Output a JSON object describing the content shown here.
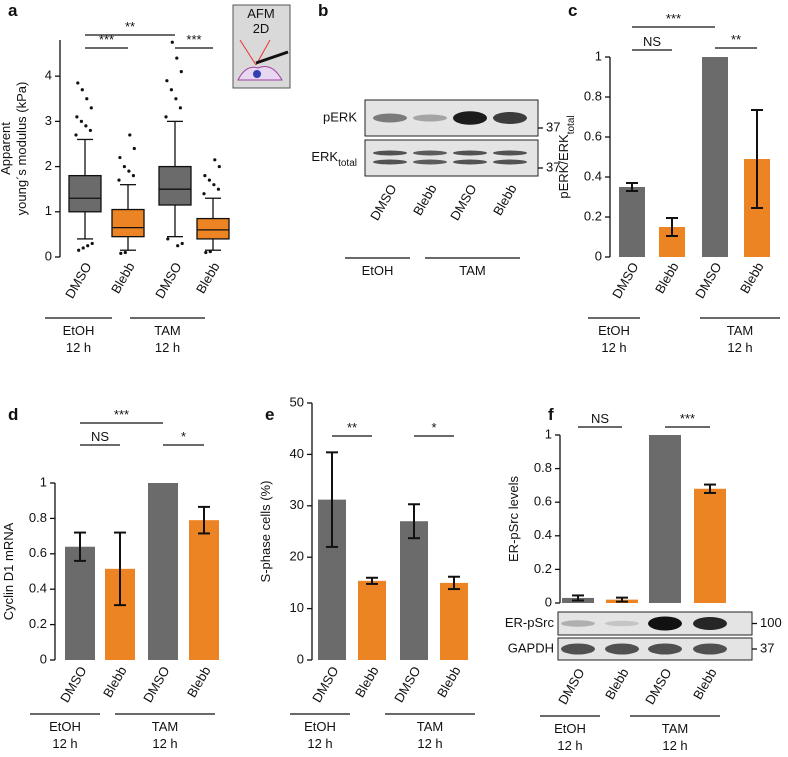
{
  "chart_data": [
    {
      "type": "box",
      "panel": "a",
      "y_label": [
        "Apparent",
        "young´s modulus (kPa)"
      ],
      "ylim": [
        0,
        4.8
      ],
      "yticks": [
        0,
        1,
        2,
        3,
        4
      ],
      "categories": [
        "DMSO",
        "Blebb",
        "DMSO",
        "Blebb"
      ],
      "colors": [
        "#6b6b6b",
        "#ec8424",
        "#6b6b6b",
        "#ec8424"
      ],
      "boxes": [
        {
          "median": 1.3,
          "q1": 1.0,
          "q3": 1.8,
          "whisker_low": 0.4,
          "whisker_high": 2.6,
          "outliers": [
            2.7,
            2.8,
            2.9,
            3.0,
            3.1,
            3.3,
            3.5,
            3.7,
            3.85,
            0.3,
            0.25,
            0.2,
            0.15
          ]
        },
        {
          "median": 0.65,
          "q1": 0.45,
          "q3": 1.05,
          "whisker_low": 0.15,
          "whisker_high": 1.6,
          "outliers": [
            1.7,
            1.8,
            1.9,
            2.0,
            2.2,
            2.4,
            2.7,
            0.1,
            0.08
          ]
        },
        {
          "median": 1.5,
          "q1": 1.15,
          "q3": 2.0,
          "whisker_low": 0.45,
          "whisker_high": 3.0,
          "outliers": [
            3.1,
            3.3,
            3.5,
            3.7,
            3.9,
            4.1,
            4.4,
            4.75,
            0.4,
            0.3,
            0.25
          ]
        },
        {
          "median": 0.6,
          "q1": 0.4,
          "q3": 0.85,
          "whisker_low": 0.15,
          "whisker_high": 1.3,
          "outliers": [
            1.4,
            1.5,
            1.6,
            1.7,
            1.8,
            2.0,
            2.15,
            0.12,
            0.1
          ]
        }
      ],
      "groups": [
        {
          "name": "EtOH",
          "time": "12 h"
        },
        {
          "name": "TAM",
          "time": "12 h"
        }
      ],
      "annotations": [
        "**",
        "***",
        "***"
      ],
      "inset": [
        "AFM",
        "2D"
      ]
    },
    {
      "type": "blot",
      "panel": "b",
      "rows": [
        "pERK",
        {
          "text": "ERK",
          "sub": "total"
        }
      ],
      "markers": [
        "37",
        "37"
      ],
      "categories": [
        "DMSO",
        "Blebb",
        "DMSO",
        "Blebb"
      ],
      "groups": [
        {
          "name": "EtOH"
        },
        {
          "name": "TAM"
        }
      ]
    },
    {
      "type": "bar",
      "panel": "c",
      "y_label": {
        "text": "pERK/ERK",
        "sub": "total"
      },
      "ylim": [
        0,
        1
      ],
      "yticks": [
        0,
        0.2,
        0.4,
        0.6,
        0.8,
        1
      ],
      "categories": [
        "DMSO",
        "Blebb",
        "DMSO",
        "Blebb"
      ],
      "values": [
        0.35,
        0.15,
        1.0,
        0.49
      ],
      "errors": [
        0.02,
        0.045,
        null,
        0.245
      ],
      "colors": [
        "#6b6b6b",
        "#ec8424",
        "#6b6b6b",
        "#ec8424"
      ],
      "groups": [
        {
          "name": "EtOH",
          "time": "12 h"
        },
        {
          "name": "TAM",
          "time": "12 h"
        }
      ],
      "annotations": [
        "***",
        "NS",
        "**"
      ]
    },
    {
      "type": "bar",
      "panel": "d",
      "y_label": "Cyclin D1 mRNA",
      "ylim": [
        0,
        1
      ],
      "yticks": [
        0,
        0.2,
        0.4,
        0.6,
        0.8,
        1
      ],
      "categories": [
        "DMSO",
        "Blebb",
        "DMSO",
        "Blebb"
      ],
      "values": [
        0.64,
        0.515,
        1.0,
        0.79
      ],
      "errors": [
        0.08,
        0.205,
        null,
        0.075
      ],
      "colors": [
        "#6b6b6b",
        "#ec8424",
        "#6b6b6b",
        "#ec8424"
      ],
      "groups": [
        {
          "name": "EtOH",
          "time": "12 h"
        },
        {
          "name": "TAM",
          "time": "12 h"
        }
      ],
      "annotations": [
        "***",
        "NS",
        "*"
      ]
    },
    {
      "type": "bar",
      "panel": "e",
      "y_label": "S-phase cells (%)",
      "ylim": [
        0,
        50
      ],
      "yticks": [
        0,
        10,
        20,
        30,
        40,
        50
      ],
      "categories": [
        "DMSO",
        "Blebb",
        "DMSO",
        "Blebb"
      ],
      "values": [
        31.2,
        15.4,
        27.0,
        15.0
      ],
      "errors": [
        9.2,
        0.6,
        3.3,
        1.2
      ],
      "colors": [
        "#6b6b6b",
        "#ec8424",
        "#6b6b6b",
        "#ec8424"
      ],
      "groups": [
        {
          "name": "EtOH",
          "time": "12 h"
        },
        {
          "name": "TAM",
          "time": "12 h"
        }
      ],
      "annotations": [
        "**",
        "*"
      ]
    },
    {
      "type": "bar",
      "panel": "f",
      "y_label": "ER-pSrc levels",
      "ylim": [
        0,
        1
      ],
      "yticks": [
        0,
        0.2,
        0.4,
        0.6,
        0.8,
        1
      ],
      "categories": [
        "DMSO",
        "Blebb",
        "DMSO",
        "Blebb"
      ],
      "values": [
        0.03,
        0.02,
        1.0,
        0.68
      ],
      "errors": [
        0.015,
        0.012,
        null,
        0.025
      ],
      "colors": [
        "#6b6b6b",
        "#ec8424",
        "#6b6b6b",
        "#ec8424"
      ],
      "groups": [
        {
          "name": "EtOH",
          "time": "12 h"
        },
        {
          "name": "TAM",
          "time": "12 h"
        }
      ],
      "annotations": [
        "NS",
        "***"
      ],
      "blot": {
        "rows": [
          "ER-pSrc",
          "GAPDH"
        ],
        "markers": [
          "100",
          "37"
        ]
      }
    }
  ]
}
